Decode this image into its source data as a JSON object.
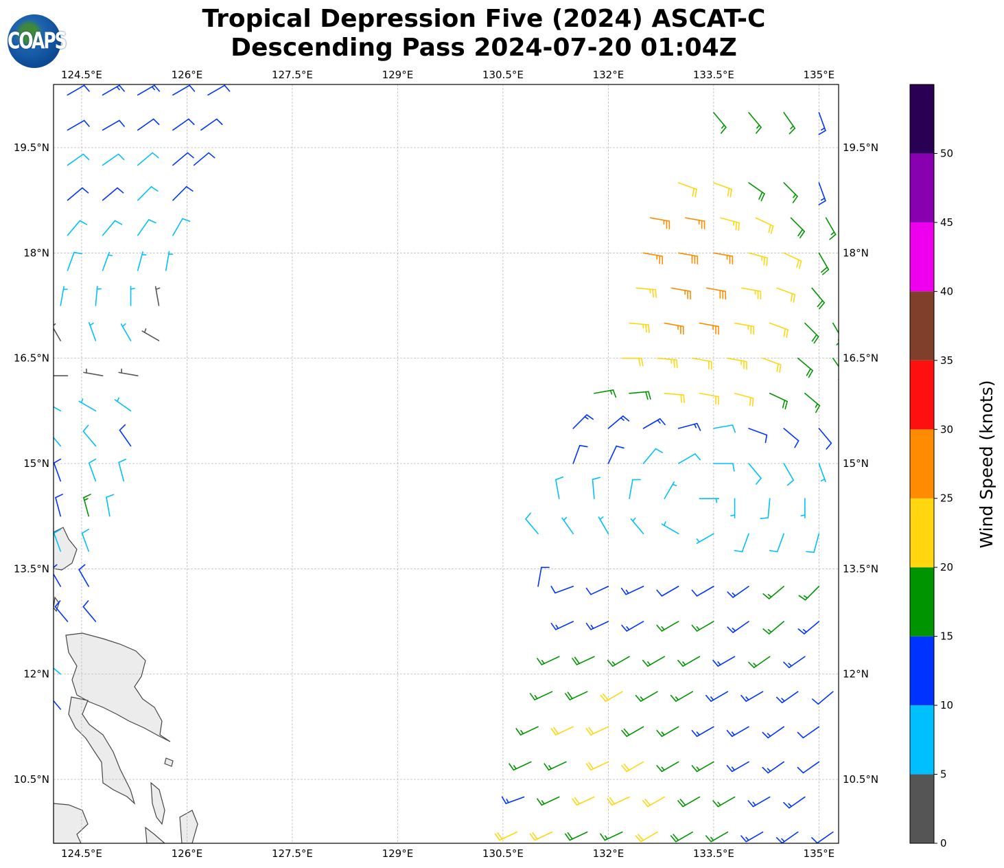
{
  "title_line1": "Tropical Depression Five (2024) ASCAT-C",
  "title_line2": "Descending Pass 2024-07-20 01:04Z",
  "logo_text": "COAPS",
  "map": {
    "extent": {
      "lon_min": 124.1,
      "lon_max": 135.28,
      "lat_min": 9.59,
      "lat_max": 20.4
    },
    "lon_ticks": [
      124.5,
      126,
      127.5,
      129,
      130.5,
      132,
      133.5,
      135
    ],
    "lon_tick_labels": [
      "124.5°E",
      "126°E",
      "127.5°E",
      "129°E",
      "130.5°E",
      "132°E",
      "133.5°E",
      "135°E"
    ],
    "lat_ticks": [
      19.5,
      18,
      16.5,
      15,
      13.5,
      12,
      10.5
    ],
    "lat_tick_labels": [
      "19.5°N",
      "18°N",
      "16.5°N",
      "15°N",
      "13.5°N",
      "12°N",
      "10.5°N"
    ],
    "gridlines": true,
    "land_color": "#ececec",
    "coast_color": "#444444"
  },
  "colorbar": {
    "label": "Wind Speed (knots)",
    "ticks": [
      0,
      5,
      10,
      15,
      20,
      25,
      30,
      35,
      40,
      45,
      50
    ],
    "tick_labels": [
      "0",
      "5",
      "10",
      "15",
      "20",
      "25",
      "30",
      "35",
      "40",
      "45",
      "50"
    ],
    "bins": [
      {
        "min": 0,
        "max": 5,
        "color": "#555555"
      },
      {
        "min": 5,
        "max": 10,
        "color": "#00bfff"
      },
      {
        "min": 10,
        "max": 15,
        "color": "#0033ff"
      },
      {
        "min": 15,
        "max": 20,
        "color": "#009500"
      },
      {
        "min": 20,
        "max": 25,
        "color": "#ffd610"
      },
      {
        "min": 25,
        "max": 30,
        "color": "#ff8c00"
      },
      {
        "min": 30,
        "max": 35,
        "color": "#ff1010"
      },
      {
        "min": 35,
        "max": 40,
        "color": "#7f3f2a"
      },
      {
        "min": 40,
        "max": 45,
        "color": "#ee00ee"
      },
      {
        "min": 45,
        "max": 50,
        "color": "#8800b0"
      },
      {
        "min": 50,
        "max": 55,
        "color": "#2a0055"
      }
    ]
  },
  "wind_barbs_fields": [
    "lon",
    "lat",
    "speed_kt",
    "dir_from_deg"
  ],
  "wind_barbs": [
    [
      133.5,
      20.0,
      17,
      140
    ],
    [
      134.0,
      20.0,
      17,
      140
    ],
    [
      134.5,
      20.0,
      16,
      145
    ],
    [
      135.0,
      20.0,
      13,
      160
    ],
    [
      133.0,
      19.0,
      22,
      110
    ],
    [
      133.5,
      19.0,
      22,
      110
    ],
    [
      134.0,
      19.0,
      18,
      125
    ],
    [
      134.5,
      19.0,
      17,
      135
    ],
    [
      135.0,
      19.0,
      13,
      160
    ],
    [
      132.6,
      18.5,
      27,
      100
    ],
    [
      133.1,
      18.5,
      26,
      100
    ],
    [
      133.6,
      18.5,
      24,
      105
    ],
    [
      134.1,
      18.5,
      22,
      115
    ],
    [
      134.6,
      18.5,
      18,
      135
    ],
    [
      135.1,
      18.5,
      17,
      150
    ],
    [
      132.5,
      18.0,
      27,
      100
    ],
    [
      133.0,
      18.0,
      28,
      100
    ],
    [
      133.5,
      18.0,
      27,
      100
    ],
    [
      134.0,
      18.0,
      23,
      105
    ],
    [
      134.5,
      18.0,
      22,
      115
    ],
    [
      135.0,
      18.0,
      18,
      150
    ],
    [
      132.4,
      17.5,
      23,
      95
    ],
    [
      132.9,
      17.5,
      27,
      100
    ],
    [
      133.4,
      17.5,
      28,
      100
    ],
    [
      133.9,
      17.5,
      24,
      100
    ],
    [
      134.4,
      17.5,
      22,
      110
    ],
    [
      134.9,
      17.5,
      18,
      140
    ],
    [
      132.3,
      17.0,
      23,
      95
    ],
    [
      132.8,
      17.0,
      27,
      100
    ],
    [
      133.3,
      17.0,
      26,
      100
    ],
    [
      133.8,
      17.0,
      24,
      100
    ],
    [
      134.3,
      17.0,
      22,
      110
    ],
    [
      134.8,
      17.0,
      18,
      135
    ],
    [
      135.2,
      17.0,
      17,
      150
    ],
    [
      132.2,
      16.5,
      22,
      90
    ],
    [
      132.7,
      16.5,
      23,
      95
    ],
    [
      133.2,
      16.5,
      22,
      100
    ],
    [
      133.7,
      16.5,
      23,
      100
    ],
    [
      134.2,
      16.5,
      21,
      110
    ],
    [
      134.7,
      16.5,
      18,
      130
    ],
    [
      135.2,
      16.5,
      17,
      145
    ],
    [
      131.8,
      16.0,
      17,
      80
    ],
    [
      132.3,
      16.0,
      18,
      85
    ],
    [
      132.8,
      16.0,
      21,
      95
    ],
    [
      133.3,
      16.0,
      22,
      100
    ],
    [
      133.8,
      16.0,
      21,
      105
    ],
    [
      134.3,
      16.0,
      19,
      115
    ],
    [
      134.8,
      16.0,
      17,
      130
    ],
    [
      131.5,
      15.5,
      13,
      45
    ],
    [
      132.0,
      15.5,
      14,
      50
    ],
    [
      132.5,
      15.5,
      14,
      60
    ],
    [
      133.0,
      15.5,
      13,
      75
    ],
    [
      133.5,
      15.5,
      9,
      80
    ],
    [
      134.0,
      15.5,
      12,
      110
    ],
    [
      134.5,
      15.5,
      12,
      130
    ],
    [
      135.0,
      15.5,
      12,
      140
    ],
    [
      131.5,
      15.0,
      12,
      20
    ],
    [
      132.0,
      15.0,
      11,
      25
    ],
    [
      132.5,
      15.0,
      9,
      40
    ],
    [
      133.0,
      15.0,
      8,
      60
    ],
    [
      133.5,
      15.0,
      8,
      90
    ],
    [
      134.0,
      15.0,
      9,
      140
    ],
    [
      134.5,
      15.0,
      8,
      150
    ],
    [
      135.0,
      15.0,
      7,
      160
    ],
    [
      131.3,
      14.5,
      8,
      350
    ],
    [
      131.8,
      14.5,
      8,
      355
    ],
    [
      132.3,
      14.5,
      8,
      10
    ],
    [
      132.8,
      14.5,
      7,
      30
    ],
    [
      133.3,
      14.5,
      6,
      90
    ],
    [
      133.8,
      14.5,
      7,
      180
    ],
    [
      134.3,
      14.5,
      8,
      185
    ],
    [
      134.8,
      14.5,
      7,
      180
    ],
    [
      131.0,
      14.0,
      8,
      320
    ],
    [
      131.5,
      14.0,
      7,
      325
    ],
    [
      132.0,
      14.0,
      7,
      330
    ],
    [
      132.5,
      14.0,
      6,
      320
    ],
    [
      133.0,
      14.0,
      5,
      300
    ],
    [
      133.5,
      14.0,
      6,
      240
    ],
    [
      134.0,
      14.0,
      8,
      200
    ],
    [
      134.5,
      14.0,
      9,
      200
    ],
    [
      135.0,
      14.0,
      8,
      195
    ],
    [
      131.0,
      13.25,
      11,
      10
    ],
    [
      131.5,
      13.25,
      12,
      250
    ],
    [
      132.0,
      13.25,
      12,
      245
    ],
    [
      132.5,
      13.25,
      13,
      245
    ],
    [
      133.0,
      13.25,
      12,
      240
    ],
    [
      133.5,
      13.25,
      12,
      240
    ],
    [
      134.0,
      13.25,
      13,
      235
    ],
    [
      134.5,
      13.25,
      16,
      230
    ],
    [
      135.0,
      13.25,
      16,
      225
    ],
    [
      131.5,
      12.75,
      13,
      245
    ],
    [
      132.0,
      12.75,
      14,
      245
    ],
    [
      132.5,
      12.75,
      14,
      240
    ],
    [
      133.0,
      12.75,
      16,
      240
    ],
    [
      133.5,
      12.75,
      16,
      240
    ],
    [
      134.0,
      12.75,
      14,
      235
    ],
    [
      134.5,
      12.75,
      16,
      230
    ],
    [
      135.0,
      12.75,
      13,
      230
    ],
    [
      131.3,
      12.25,
      17,
      245
    ],
    [
      131.8,
      12.25,
      18,
      245
    ],
    [
      132.3,
      12.25,
      17,
      240
    ],
    [
      132.8,
      12.25,
      17,
      240
    ],
    [
      133.3,
      12.25,
      16,
      240
    ],
    [
      133.8,
      12.25,
      14,
      240
    ],
    [
      134.3,
      12.25,
      16,
      235
    ],
    [
      134.8,
      12.25,
      13,
      235
    ],
    [
      131.2,
      11.75,
      17,
      245
    ],
    [
      131.7,
      11.75,
      18,
      245
    ],
    [
      132.2,
      11.75,
      21,
      240
    ],
    [
      132.7,
      11.75,
      17,
      240
    ],
    [
      133.2,
      11.75,
      16,
      240
    ],
    [
      133.7,
      11.75,
      14,
      240
    ],
    [
      134.2,
      11.75,
      14,
      240
    ],
    [
      134.7,
      11.75,
      13,
      235
    ],
    [
      135.2,
      11.75,
      12,
      230
    ],
    [
      131.0,
      11.25,
      17,
      245
    ],
    [
      131.5,
      11.25,
      21,
      245
    ],
    [
      132.0,
      11.25,
      22,
      245
    ],
    [
      132.5,
      11.25,
      18,
      240
    ],
    [
      133.0,
      11.25,
      17,
      240
    ],
    [
      133.5,
      11.25,
      14,
      240
    ],
    [
      134.0,
      11.25,
      14,
      240
    ],
    [
      134.5,
      11.25,
      13,
      235
    ],
    [
      135.0,
      11.25,
      12,
      235
    ],
    [
      130.9,
      10.75,
      16,
      245
    ],
    [
      131.4,
      10.75,
      17,
      245
    ],
    [
      132.0,
      10.75,
      21,
      245
    ],
    [
      132.5,
      10.75,
      21,
      240
    ],
    [
      133.0,
      10.75,
      17,
      240
    ],
    [
      133.5,
      10.75,
      16,
      240
    ],
    [
      134.0,
      10.75,
      14,
      240
    ],
    [
      134.5,
      10.75,
      13,
      235
    ],
    [
      135.0,
      10.75,
      12,
      235
    ],
    [
      130.8,
      10.25,
      14,
      250
    ],
    [
      131.3,
      10.25,
      17,
      245
    ],
    [
      131.8,
      10.25,
      22,
      245
    ],
    [
      132.3,
      10.25,
      21,
      245
    ],
    [
      132.8,
      10.25,
      21,
      240
    ],
    [
      133.3,
      10.25,
      18,
      240
    ],
    [
      133.8,
      10.25,
      16,
      240
    ],
    [
      134.3,
      10.25,
      14,
      240
    ],
    [
      134.8,
      10.25,
      13,
      235
    ],
    [
      130.7,
      9.75,
      21,
      245
    ],
    [
      131.2,
      9.75,
      22,
      245
    ],
    [
      131.7,
      9.75,
      18,
      245
    ],
    [
      132.2,
      9.75,
      17,
      245
    ],
    [
      132.7,
      9.75,
      21,
      240
    ],
    [
      133.2,
      9.75,
      18,
      240
    ],
    [
      133.7,
      9.75,
      16,
      240
    ],
    [
      134.2,
      9.75,
      14,
      240
    ],
    [
      134.7,
      9.75,
      13,
      235
    ],
    [
      135.2,
      9.75,
      12,
      235
    ],
    [
      124.3,
      20.25,
      12,
      60
    ],
    [
      124.8,
      20.25,
      13,
      60
    ],
    [
      125.3,
      20.25,
      13,
      60
    ],
    [
      125.8,
      20.25,
      12,
      60
    ],
    [
      126.3,
      20.25,
      12,
      60
    ],
    [
      124.3,
      19.75,
      12,
      60
    ],
    [
      124.8,
      19.75,
      11,
      60
    ],
    [
      125.3,
      19.75,
      12,
      55
    ],
    [
      125.8,
      19.75,
      12,
      55
    ],
    [
      126.2,
      19.75,
      11,
      55
    ],
    [
      124.3,
      19.25,
      9,
      55
    ],
    [
      124.8,
      19.25,
      9,
      55
    ],
    [
      125.3,
      19.25,
      8,
      50
    ],
    [
      125.8,
      19.25,
      11,
      50
    ],
    [
      126.1,
      19.25,
      11,
      50
    ],
    [
      124.3,
      18.75,
      11,
      50
    ],
    [
      124.8,
      18.75,
      12,
      50
    ],
    [
      125.3,
      18.75,
      9,
      45
    ],
    [
      125.8,
      18.75,
      11,
      45
    ],
    [
      124.3,
      18.25,
      8,
      40
    ],
    [
      124.8,
      18.25,
      8,
      40
    ],
    [
      125.3,
      18.25,
      9,
      35
    ],
    [
      125.8,
      18.25,
      8,
      30
    ],
    [
      124.3,
      17.75,
      8,
      20
    ],
    [
      124.8,
      17.75,
      7,
      20
    ],
    [
      125.3,
      17.75,
      7,
      15
    ],
    [
      125.7,
      17.75,
      7,
      10
    ],
    [
      124.2,
      17.25,
      6,
      10
    ],
    [
      124.7,
      17.25,
      6,
      5
    ],
    [
      125.2,
      17.25,
      6,
      0
    ],
    [
      125.6,
      17.25,
      4,
      350
    ],
    [
      124.2,
      16.75,
      4,
      330
    ],
    [
      124.7,
      16.75,
      6,
      340
    ],
    [
      125.2,
      16.75,
      6,
      330
    ],
    [
      125.6,
      16.75,
      3,
      300
    ],
    [
      124.3,
      16.25,
      3,
      270
    ],
    [
      124.8,
      16.25,
      4,
      280
    ],
    [
      125.3,
      16.25,
      4,
      280
    ],
    [
      124.2,
      15.75,
      6,
      300
    ],
    [
      124.7,
      15.75,
      6,
      300
    ],
    [
      125.2,
      15.75,
      7,
      305
    ],
    [
      124.2,
      15.25,
      7,
      320
    ],
    [
      124.7,
      15.25,
      8,
      320
    ],
    [
      125.2,
      15.25,
      11,
      325
    ],
    [
      124.2,
      14.75,
      11,
      340
    ],
    [
      124.7,
      14.75,
      9,
      340
    ],
    [
      125.1,
      14.75,
      8,
      345
    ],
    [
      124.2,
      14.25,
      11,
      345
    ],
    [
      124.6,
      14.25,
      16,
      345
    ],
    [
      124.9,
      14.25,
      8,
      350
    ],
    [
      124.2,
      13.75,
      8,
      340
    ],
    [
      124.6,
      13.75,
      9,
      340
    ],
    [
      124.2,
      13.25,
      12,
      330
    ],
    [
      124.6,
      13.25,
      11,
      330
    ],
    [
      124.3,
      12.75,
      12,
      320
    ],
    [
      124.7,
      12.75,
      11,
      320
    ],
    [
      124.2,
      12.0,
      8,
      310
    ],
    [
      124.2,
      11.5,
      11,
      320
    ]
  ]
}
